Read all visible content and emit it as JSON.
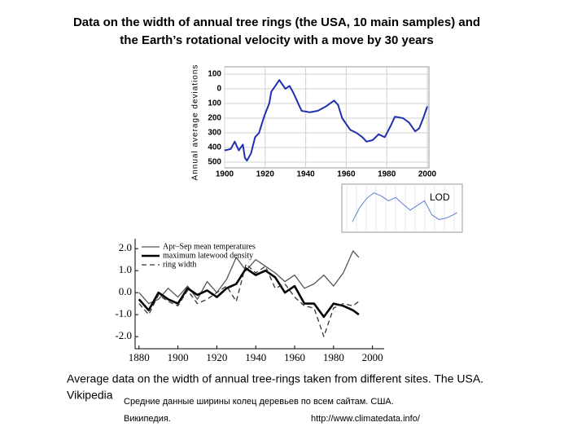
{
  "texts": {
    "title": [
      "Data on the width of annual tree rings (the USA, 10 main samples) and",
      "the Earth’s rotational velocity with a move by 30 years"
    ],
    "caption": "Average data on the width of annual tree-rings taken from different sites. The USA.",
    "source": "Vikipedia",
    "russian": [
      "Средние данные ширины колец деревьев по всем сайтам. США.",
      "Википедия."
    ],
    "url": "http://www.climatedata.info/"
  },
  "chart_data": [
    {
      "type": "line",
      "y_label": "Annual average deviations",
      "xlim": [
        1900,
        2000
      ],
      "xticks": [
        1900,
        1920,
        1940,
        1960,
        1980,
        2000
      ],
      "ylim": [
        500,
        -100
      ],
      "yticks": [
        {
          "value": -100,
          "label": "100"
        },
        0,
        100,
        200,
        300,
        400,
        500
      ],
      "grid": true,
      "series": [
        {
          "name": null,
          "color": "#1f2fb0",
          "width": 2,
          "dash": null,
          "x": [
            1900,
            1903,
            1905,
            1907,
            1909,
            1910,
            1911,
            1913,
            1915,
            1917,
            1919,
            1920,
            1922,
            1923,
            1925,
            1927,
            1930,
            1932,
            1934,
            1936,
            1938,
            1942,
            1946,
            1950,
            1954,
            1956,
            1958,
            1962,
            1965,
            1968,
            1970,
            1973,
            1976,
            1979,
            1982,
            1984,
            1988,
            1991,
            1994,
            1996,
            1998,
            2000
          ],
          "values": [
            420,
            410,
            360,
            420,
            380,
            470,
            490,
            440,
            330,
            300,
            210,
            170,
            100,
            20,
            -20,
            -60,
            0,
            -20,
            30,
            90,
            150,
            160,
            150,
            120,
            80,
            110,
            200,
            280,
            300,
            330,
            360,
            350,
            310,
            330,
            250,
            190,
            200,
            230,
            290,
            270,
            200,
            120
          ]
        }
      ]
    },
    {
      "type": "line",
      "label": "LOD",
      "xlim": [
        1850,
        2010
      ],
      "ylim": [
        -4,
        4
      ],
      "grid": true,
      "series": [
        {
          "name": null,
          "color": "#5b7fd0",
          "width": 1,
          "dash": null,
          "x": [
            1860,
            1870,
            1880,
            1890,
            1900,
            1910,
            1920,
            1930,
            1940,
            1950,
            1960,
            1970,
            1980,
            1990,
            2000,
            2005
          ],
          "values": [
            -3,
            0,
            2,
            3.2,
            2.5,
            1.5,
            2.2,
            0.8,
            -0.5,
            0.5,
            1.5,
            -1.5,
            -2.5,
            -2.2,
            -1.5,
            -1
          ]
        }
      ]
    },
    {
      "type": "line",
      "xlim": [
        1878,
        2006
      ],
      "xticks": [
        1880,
        1900,
        1920,
        1940,
        1960,
        1980,
        2000
      ],
      "ylim": [
        -2.55,
        2.45
      ],
      "yticks": [
        {
          "value": 2,
          "label": "2.0"
        },
        {
          "value": 1,
          "label": "1.0"
        },
        {
          "value": 0,
          "label": "0.0"
        },
        {
          "value": -1,
          "label": "-1.0"
        },
        {
          "value": -2,
          "label": "-2.0"
        }
      ],
      "grid": false,
      "legend": "top-left",
      "series": [
        {
          "name": "Apr–Sep mean temperatures",
          "color": "#555555",
          "width": 1.3,
          "dash": null,
          "x": [
            1880,
            1885,
            1890,
            1895,
            1900,
            1905,
            1910,
            1915,
            1920,
            1925,
            1930,
            1935,
            1940,
            1945,
            1950,
            1955,
            1960,
            1965,
            1970,
            1975,
            1980,
            1985,
            1990,
            1993
          ],
          "values": [
            0.0,
            -0.5,
            -0.3,
            0.2,
            -0.2,
            0.3,
            -0.3,
            0.5,
            0.0,
            0.6,
            1.6,
            1.0,
            1.5,
            1.2,
            0.9,
            0.5,
            0.8,
            0.2,
            0.4,
            0.8,
            0.3,
            0.9,
            1.9,
            1.6
          ]
        },
        {
          "name": "maximum latewood density",
          "color": "#000000",
          "width": 2.6,
          "dash": null,
          "x": [
            1880,
            1885,
            1890,
            1895,
            1900,
            1905,
            1910,
            1915,
            1920,
            1925,
            1930,
            1935,
            1940,
            1945,
            1950,
            1955,
            1960,
            1965,
            1970,
            1975,
            1980,
            1985,
            1990,
            1993
          ],
          "values": [
            -0.3,
            -0.8,
            0.0,
            -0.3,
            -0.5,
            0.2,
            -0.1,
            0.1,
            -0.2,
            0.2,
            0.4,
            1.1,
            0.8,
            1.0,
            0.7,
            0.0,
            0.3,
            -0.5,
            -0.5,
            -1.1,
            -0.5,
            -0.6,
            -0.8,
            -1.0
          ]
        },
        {
          "name": "ring width",
          "color": "#333333",
          "width": 1.3,
          "dash": "6,4",
          "x": [
            1880,
            1885,
            1890,
            1895,
            1900,
            1905,
            1910,
            1915,
            1920,
            1925,
            1930,
            1935,
            1940,
            1945,
            1950,
            1955,
            1960,
            1965,
            1970,
            1975,
            1980,
            1985,
            1990,
            1993
          ],
          "values": [
            -0.5,
            -1.0,
            -0.1,
            -0.4,
            -0.6,
            0.1,
            -0.5,
            -0.3,
            0.0,
            0.3,
            -0.4,
            1.3,
            0.9,
            1.2,
            0.2,
            0.4,
            -0.2,
            -0.6,
            -0.7,
            -2.0,
            -0.7,
            -0.5,
            -0.6,
            -0.4
          ]
        }
      ]
    }
  ]
}
